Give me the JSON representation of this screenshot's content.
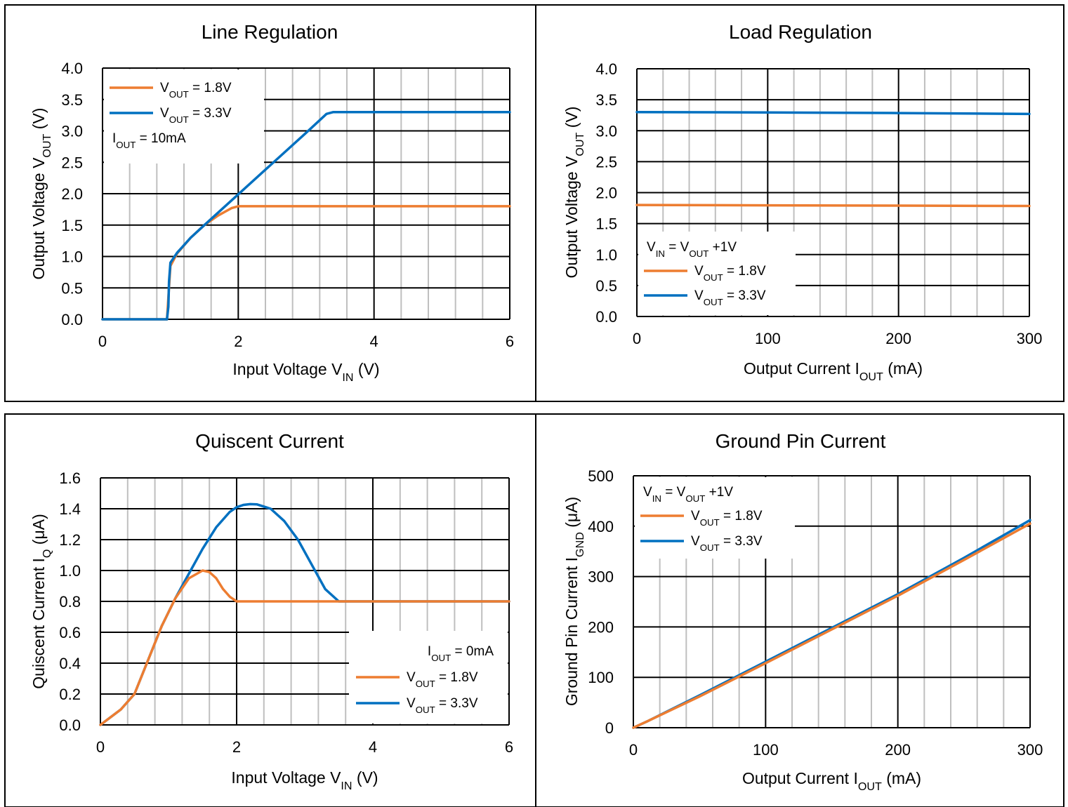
{
  "colors": {
    "orange": "#ED7D31",
    "blue": "#0070C0",
    "grid_major": "#000000",
    "grid_minor": "#BFBFBF",
    "frame": "#000000"
  },
  "chart_data": [
    {
      "id": "line-regulation",
      "type": "line",
      "title": "Line Regulation",
      "xlabel": {
        "main": "Input Voltage V",
        "sub": "IN",
        "tail": " (V)"
      },
      "ylabel": {
        "main": "Output Voltage V",
        "sub": "OUT",
        "tail": " (V)"
      },
      "xlim": [
        0,
        6
      ],
      "ylim": [
        0,
        4
      ],
      "xticks": [
        "0",
        "2",
        "4",
        "6"
      ],
      "yticks": [
        "0.0",
        "0.5",
        "1.0",
        "1.5",
        "2.0",
        "2.5",
        "3.0",
        "3.5",
        "4.0"
      ],
      "legend_position": "top-left",
      "legend": [
        {
          "kind": "line",
          "color": "#ED7D31",
          "pre": "V",
          "sub": "OUT",
          "post": " = 1.8V"
        },
        {
          "kind": "line",
          "color": "#0070C0",
          "pre": "V",
          "sub": "OUT",
          "post": " = 3.3V"
        },
        {
          "kind": "text",
          "pre": "I",
          "sub": "OUT",
          "post": " = 10mA"
        }
      ],
      "series": [
        {
          "color": "#ED7D31",
          "x": [
            0,
            0.5,
            0.9,
            0.95,
            0.97,
            1.0,
            1.1,
            1.3,
            1.5,
            1.7,
            1.9,
            2.0,
            6.0
          ],
          "y": [
            0,
            0,
            0,
            0,
            0.35,
            0.85,
            1.05,
            1.3,
            1.5,
            1.65,
            1.77,
            1.8,
            1.8
          ]
        },
        {
          "color": "#0070C0",
          "x": [
            0,
            0.5,
            0.9,
            0.95,
            0.97,
            0.98,
            1.0,
            1.1,
            1.3,
            1.5,
            2.0,
            2.5,
            3.0,
            3.2,
            3.3,
            3.4,
            6.0
          ],
          "y": [
            0,
            0,
            0,
            0,
            0.2,
            0.6,
            0.9,
            1.06,
            1.3,
            1.5,
            1.99,
            2.48,
            2.97,
            3.17,
            3.27,
            3.3,
            3.3
          ]
        }
      ]
    },
    {
      "id": "load-regulation",
      "type": "line",
      "title": "Load Regulation",
      "xlabel": {
        "main": "Output Current I",
        "sub": "OUT",
        "tail": " (mA)"
      },
      "ylabel": {
        "main": "Output Voltage V",
        "sub": "OUT",
        "tail": " (V)"
      },
      "xlim": [
        0,
        300
      ],
      "ylim": [
        0,
        4
      ],
      "xticks": [
        "0",
        "100",
        "200",
        "300"
      ],
      "yticks": [
        "0.0",
        "0.5",
        "1.0",
        "1.5",
        "2.0",
        "2.5",
        "3.0",
        "3.5",
        "4.0"
      ],
      "legend_position": "bottom-left",
      "legend": [
        {
          "kind": "text",
          "pre": "V",
          "sub": "IN",
          "post": " = V",
          "sub2": "OUT",
          "post2": " +1V"
        },
        {
          "kind": "line",
          "color": "#ED7D31",
          "pre": "V",
          "sub": "OUT",
          "post": " = 1.8V"
        },
        {
          "kind": "line",
          "color": "#0070C0",
          "pre": "V",
          "sub": "OUT",
          "post": " = 3.3V"
        }
      ],
      "series": [
        {
          "color": "#ED7D31",
          "x": [
            0,
            100,
            200,
            300
          ],
          "y": [
            1.8,
            1.795,
            1.79,
            1.785
          ]
        },
        {
          "color": "#0070C0",
          "x": [
            0,
            100,
            200,
            300
          ],
          "y": [
            3.3,
            3.295,
            3.285,
            3.27
          ]
        }
      ]
    },
    {
      "id": "quiescent-current",
      "type": "line",
      "title": "Quiscent Current",
      "xlabel": {
        "main": "Input Voltage V",
        "sub": "IN",
        "tail": " (V)"
      },
      "ylabel": {
        "main": "Quiscent Current I",
        "sub": "Q",
        "tail": " (μA)"
      },
      "xlim": [
        0,
        6
      ],
      "ylim": [
        0,
        1.6
      ],
      "xticks": [
        "0",
        "2",
        "4",
        "6"
      ],
      "yticks": [
        "0.0",
        "0.2",
        "0.4",
        "0.6",
        "0.8",
        "1.0",
        "1.2",
        "1.4",
        "1.6"
      ],
      "legend_position": "bottom-right",
      "legend": [
        {
          "kind": "text",
          "pre": "I",
          "sub": "OUT",
          "post": " = 0mA"
        },
        {
          "kind": "line",
          "color": "#ED7D31",
          "pre": "V",
          "sub": "OUT",
          "post": " = 1.8V"
        },
        {
          "kind": "line",
          "color": "#0070C0",
          "pre": "V",
          "sub": "OUT",
          "post": " = 3.3V"
        }
      ],
      "series": [
        {
          "color": "#0070C0",
          "x": [
            0,
            0.3,
            0.5,
            0.7,
            0.9,
            1.1,
            1.3,
            1.5,
            1.7,
            1.9,
            2.0,
            2.1,
            2.2,
            2.3,
            2.5,
            2.7,
            2.9,
            3.1,
            3.3,
            3.5,
            6.0
          ],
          "y": [
            0,
            0.1,
            0.2,
            0.42,
            0.64,
            0.82,
            0.98,
            1.14,
            1.28,
            1.38,
            1.41,
            1.425,
            1.43,
            1.428,
            1.4,
            1.32,
            1.2,
            1.04,
            0.88,
            0.8,
            0.8
          ]
        },
        {
          "color": "#ED7D31",
          "x": [
            0,
            0.3,
            0.5,
            0.7,
            0.9,
            1.1,
            1.3,
            1.5,
            1.6,
            1.7,
            1.8,
            1.9,
            2.0,
            6.0
          ],
          "y": [
            0,
            0.1,
            0.2,
            0.42,
            0.64,
            0.82,
            0.95,
            1.0,
            0.99,
            0.95,
            0.88,
            0.83,
            0.8,
            0.8
          ]
        }
      ]
    },
    {
      "id": "ground-pin-current",
      "type": "line",
      "title": "Ground Pin Current",
      "xlabel": {
        "main": "Output Current I",
        "sub": "OUT",
        "tail": " (mA)"
      },
      "ylabel": {
        "main": "Ground Pin Current I",
        "sub": "GND",
        "tail": " (μA)"
      },
      "xlim": [
        0,
        300
      ],
      "ylim": [
        0,
        500
      ],
      "xticks": [
        "0",
        "100",
        "200",
        "300"
      ],
      "yticks": [
        "0",
        "100",
        "200",
        "300",
        "400",
        "500"
      ],
      "legend_position": "top-left",
      "legend": [
        {
          "kind": "text",
          "pre": "V",
          "sub": "IN",
          "post": " = V",
          "sub2": "OUT",
          "post2": " +1V"
        },
        {
          "kind": "line",
          "color": "#ED7D31",
          "pre": "V",
          "sub": "OUT",
          "post": " = 1.8V"
        },
        {
          "kind": "line",
          "color": "#0070C0",
          "pre": "V",
          "sub": "OUT",
          "post": " = 3.3V"
        }
      ],
      "series": [
        {
          "color": "#0070C0",
          "x": [
            0,
            5,
            10,
            50,
            100,
            150,
            200,
            250,
            300
          ],
          "y": [
            0,
            6,
            12,
            64,
            131,
            198,
            265,
            337,
            412
          ]
        },
        {
          "color": "#ED7D31",
          "x": [
            0,
            5,
            10,
            50,
            100,
            150,
            200,
            250,
            300
          ],
          "y": [
            0,
            6,
            12,
            62,
            128,
            195,
            262,
            333,
            405
          ]
        }
      ]
    }
  ]
}
